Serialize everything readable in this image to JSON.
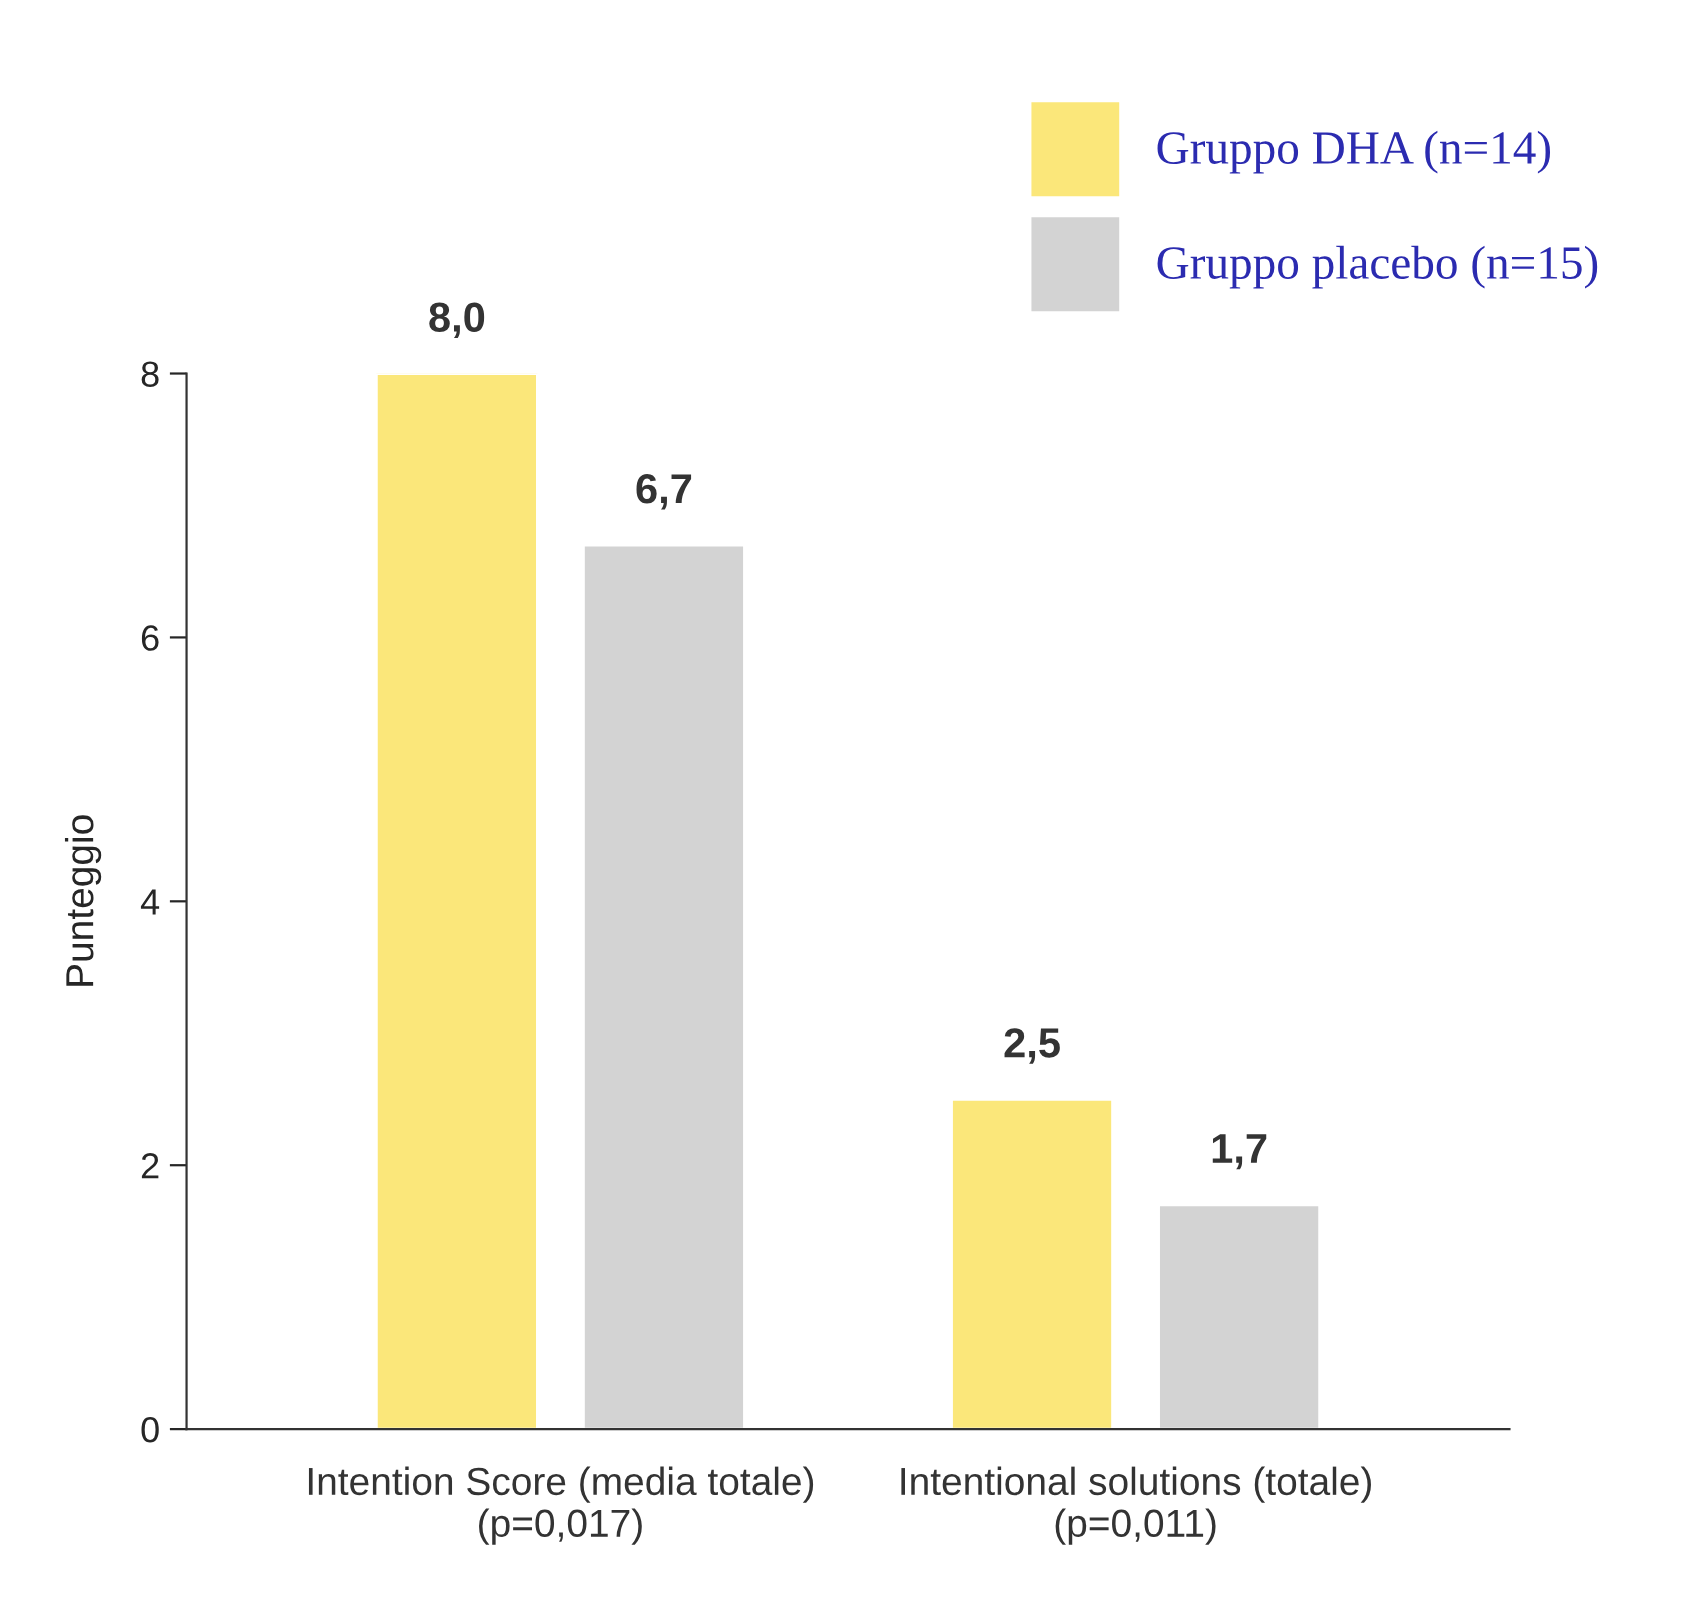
{
  "chart_data": {
    "type": "bar",
    "ylabel": "Punteggio",
    "categories": [
      "Intention Score (media totale)\n(p=0,017)",
      "Intentional solutions (totale)\n(p=0,011)"
    ],
    "series": [
      {
        "name": "Gruppo DHA (n=14)",
        "color": "#fbe77a",
        "values": [
          8.0,
          2.5
        ],
        "value_labels": [
          "8,0",
          "2,5"
        ]
      },
      {
        "name": "Gruppo placebo (n=15)",
        "color": "#d3d3d3",
        "values": [
          6.7,
          1.7
        ],
        "value_labels": [
          "6,7",
          "1,7"
        ]
      }
    ],
    "ylim": [
      0,
      8
    ],
    "yticks": [
      0,
      2,
      4,
      6,
      8
    ],
    "grid": false,
    "legend": "top right"
  }
}
